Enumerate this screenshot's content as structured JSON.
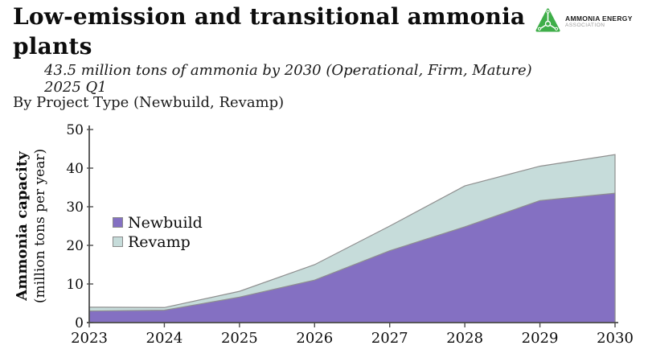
{
  "header": {
    "title": "Low-emission and transitional ammonia plants",
    "subtitle_line1": "43.5 million tons of ammonia by 2030 (Operational, Firm, Mature)",
    "subtitle_line2": "2025 Q1",
    "byline": "By Project Type (Newbuild, Revamp)"
  },
  "logo": {
    "text_line1": "AMMONIA ENERGY",
    "text_line2": "ASSOCIATION",
    "green": "#3fae49"
  },
  "chart_data": {
    "type": "area",
    "stacked": true,
    "x": [
      2023,
      2024,
      2025,
      2026,
      2027,
      2028,
      2029,
      2030
    ],
    "series": [
      {
        "name": "Newbuild",
        "color": "#8470c2",
        "values": [
          3.0,
          3.2,
          6.6,
          11.0,
          18.6,
          24.8,
          31.6,
          33.5
        ]
      },
      {
        "name": "Revamp",
        "color": "#c6dcda",
        "values": [
          1.0,
          0.7,
          1.5,
          4.0,
          6.4,
          10.6,
          8.9,
          10.0
        ]
      }
    ],
    "stacked_totals": [
      4.0,
      3.9,
      8.1,
      15.0,
      25.0,
      35.4,
      40.5,
      43.5
    ],
    "ylabel_line1": "Ammonia capacity",
    "ylabel_line2": "(million tons per year)",
    "ylim": [
      0,
      50
    ],
    "yticks": [
      0,
      10,
      20,
      30,
      40,
      50
    ],
    "grid": false,
    "legend_position": "middle-left",
    "edge_color": "#8f8f8f",
    "axis_color": "#4d4d4d",
    "tick_label_color": "#0d0d0d"
  }
}
